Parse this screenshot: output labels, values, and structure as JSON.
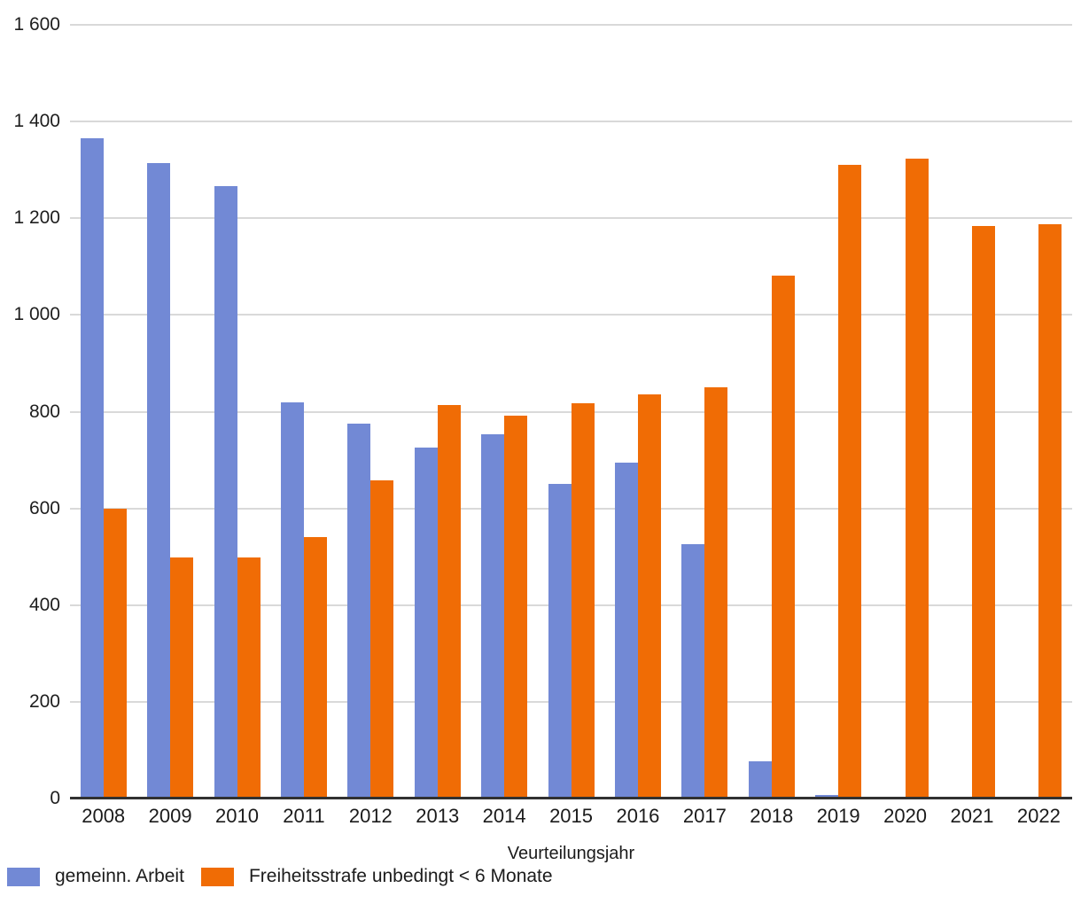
{
  "chart_data": {
    "type": "bar",
    "title": "",
    "xlabel": "Veurteilungsjahr",
    "ylabel": "",
    "ylim": [
      0,
      1600
    ],
    "grid": true,
    "legend_position": "bottom-left",
    "categories": [
      "2008",
      "2009",
      "2010",
      "2011",
      "2012",
      "2013",
      "2014",
      "2015",
      "2016",
      "2017",
      "2018",
      "2019",
      "2020",
      "2021",
      "2022"
    ],
    "series": [
      {
        "name": "gemeinn. Arbeit",
        "color": "#7289d5",
        "values": [
          1365,
          1315,
          1266,
          820,
          775,
          725,
          753,
          650,
          695,
          526,
          77,
          8,
          0,
          0,
          0
        ]
      },
      {
        "name": "Freiheitsstrafe unbedingt < 6 Monate",
        "color": "#f06c05",
        "values": [
          600,
          499,
          499,
          540,
          658,
          814,
          791,
          818,
          836,
          851,
          1081,
          1310,
          1324,
          1184,
          1188
        ]
      }
    ],
    "y_ticks": [
      {
        "v": 0,
        "label": "0"
      },
      {
        "v": 200,
        "label": "200"
      },
      {
        "v": 400,
        "label": "400"
      },
      {
        "v": 600,
        "label": "600"
      },
      {
        "v": 800,
        "label": "800"
      },
      {
        "v": 1000,
        "label": "1 000"
      },
      {
        "v": 1200,
        "label": "1 200"
      },
      {
        "v": 1400,
        "label": "1 400"
      },
      {
        "v": 1600,
        "label": "1 600"
      }
    ]
  }
}
